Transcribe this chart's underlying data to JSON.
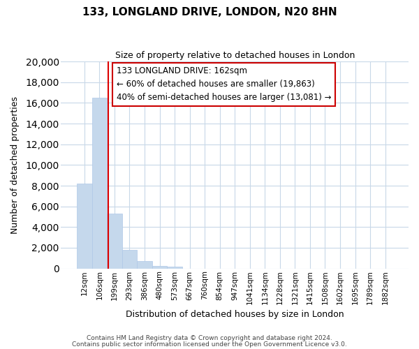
{
  "title": "133, LONGLAND DRIVE, LONDON, N20 8HN",
  "subtitle": "Size of property relative to detached houses in London",
  "xlabel": "Distribution of detached houses by size in London",
  "ylabel": "Number of detached properties",
  "categories": [
    "12sqm",
    "106sqm",
    "199sqm",
    "293sqm",
    "386sqm",
    "480sqm",
    "573sqm",
    "667sqm",
    "760sqm",
    "854sqm",
    "947sqm",
    "1041sqm",
    "1134sqm",
    "1228sqm",
    "1321sqm",
    "1415sqm",
    "1508sqm",
    "1602sqm",
    "1695sqm",
    "1789sqm",
    "1882sqm"
  ],
  "bar_values": [
    8200,
    16500,
    5300,
    1800,
    750,
    250,
    200,
    0,
    0,
    0,
    0,
    0,
    0,
    0,
    0,
    0,
    0,
    0,
    0,
    0,
    0
  ],
  "bar_color": "#c5d8ec",
  "bar_edge_color": "#afc8e8",
  "grid_color": "#c8d8e8",
  "vline_color": "#dd0000",
  "annotation_title": "133 LONGLAND DRIVE: 162sqm",
  "annotation_line1": "← 60% of detached houses are smaller (19,863)",
  "annotation_line2": "40% of semi-detached houses are larger (13,081) →",
  "ylim": [
    0,
    20000
  ],
  "yticks": [
    0,
    2000,
    4000,
    6000,
    8000,
    10000,
    12000,
    14000,
    16000,
    18000,
    20000
  ],
  "footer1": "Contains HM Land Registry data © Crown copyright and database right 2024.",
  "footer2": "Contains public sector information licensed under the Open Government Licence v3.0."
}
